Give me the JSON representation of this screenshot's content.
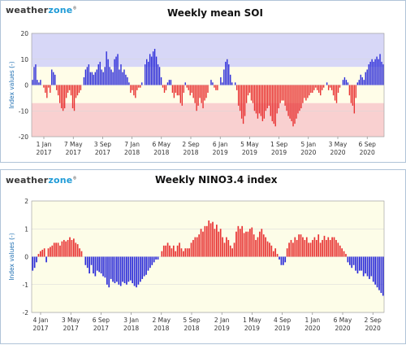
{
  "logo": {
    "part1": "weather",
    "part2": "zone",
    "mark": "®"
  },
  "colors": {
    "positive_soi": "#2b2bd9",
    "negative_soi": "#e83232",
    "positive_nino": "#e83232",
    "negative_nino": "#2b2bd9",
    "soi_top_band": "#d7d7f7",
    "soi_mid_band": "#fffde8",
    "soi_bottom_band": "#f9d0d0",
    "nino_bg": "#fdfde8",
    "axis_label": "#1f6fb2"
  },
  "chart_data": [
    {
      "type": "bar",
      "title": "Weekly mean SOI",
      "ylabel": "Index values (-)",
      "ylim": [
        -20,
        20
      ],
      "yticks": [
        20,
        10,
        0,
        -10,
        -20
      ],
      "bands": [
        {
          "from": 7,
          "to": 20,
          "color": "soi_top_band"
        },
        {
          "from": -7,
          "to": 7,
          "color": "soi_mid_band"
        },
        {
          "from": -20,
          "to": -7,
          "color": "soi_bottom_band"
        }
      ],
      "xticks": [
        {
          "label": "1 Jan",
          "year": "2017"
        },
        {
          "label": "7 May",
          "year": "2017"
        },
        {
          "label": "3 Sep",
          "year": "2017"
        },
        {
          "label": "7 Jan",
          "year": "2018"
        },
        {
          "label": "6 May",
          "year": "2018"
        },
        {
          "label": "2 Sep",
          "year": "2018"
        },
        {
          "label": "6 Jan",
          "year": "2019"
        },
        {
          "label": "5 May",
          "year": "2019"
        },
        {
          "label": "1 Sep",
          "year": "2019"
        },
        {
          "label": "5 Jan",
          "year": "2020"
        },
        {
          "label": "3 May",
          "year": "2020"
        },
        {
          "label": "6 Sep",
          "year": "2020"
        }
      ],
      "week_count": 196,
      "values": [
        2,
        7,
        8,
        2,
        1,
        2,
        0,
        -1,
        -3,
        -5,
        -1,
        -3,
        6,
        5,
        4,
        -2,
        -4,
        -7,
        -9,
        -10,
        -9,
        -5,
        -3,
        -2,
        -4,
        -9,
        -10,
        -5,
        -4,
        -3,
        -2,
        0,
        3,
        6,
        7,
        8,
        5,
        5,
        4,
        5,
        6,
        8,
        9,
        6,
        5,
        7,
        13,
        10,
        7,
        6,
        5,
        10,
        11,
        12,
        6,
        8,
        5,
        6,
        4,
        3,
        1,
        -3,
        -2,
        -4,
        -5,
        -2,
        -1,
        -1,
        1,
        0,
        8,
        10,
        9,
        12,
        11,
        13,
        14,
        11,
        8,
        7,
        3,
        -1,
        -3,
        -2,
        1,
        2,
        2,
        -3,
        -5,
        -3,
        -4,
        -4,
        -7,
        -8,
        -3,
        1,
        -1,
        -2,
        -4,
        -3,
        -5,
        -7,
        -10,
        -8,
        -5,
        -7,
        -9,
        -6,
        -5,
        -3,
        0,
        2,
        1,
        -1,
        -2,
        -2,
        0,
        3,
        1,
        6,
        9,
        10,
        8,
        4,
        1,
        0,
        1,
        -2,
        -8,
        -10,
        -13,
        -15,
        -12,
        -7,
        -4,
        -3,
        -6,
        -7,
        -10,
        -11,
        -13,
        -11,
        -12,
        -14,
        -13,
        -10,
        -9,
        -8,
        -12,
        -14,
        -15,
        -16,
        -11,
        -9,
        -7,
        -6,
        -6,
        -8,
        -10,
        -12,
        -13,
        -14,
        -16,
        -15,
        -13,
        -11,
        -10,
        -9,
        -7,
        -5,
        -6,
        -5,
        -4,
        -3,
        -3,
        -2,
        -1,
        -2,
        -3,
        -4,
        -2,
        -1,
        0,
        1,
        -2,
        -1,
        -2,
        -4,
        -6,
        -7,
        -3,
        -1,
        0,
        2,
        3,
        2,
        1,
        -4,
        -7,
        -8
      ],
      "tail_values": [
        -11,
        -5,
        1,
        2,
        4,
        3,
        2,
        5,
        6,
        8,
        9,
        10,
        9,
        10,
        11,
        10,
        12,
        9,
        8
      ]
    },
    {
      "type": "bar",
      "title": "Weekly NINO3.4 index",
      "ylabel": "Index values (-)",
      "ylim": [
        -2,
        2
      ],
      "yticks": [
        2,
        1,
        0,
        -1,
        -2
      ],
      "xticks": [
        {
          "label": "4 Jan",
          "year": "2017"
        },
        {
          "label": "3 May",
          "year": "2017"
        },
        {
          "label": "6 Sep",
          "year": "2017"
        },
        {
          "label": "3 Jan",
          "year": "2018"
        },
        {
          "label": "2 May",
          "year": "2018"
        },
        {
          "label": "5 Sep",
          "year": "2018"
        },
        {
          "label": "2 Jan",
          "year": "2019"
        },
        {
          "label": "1 May",
          "year": "2019"
        },
        {
          "label": "4 Sep",
          "year": "2019"
        },
        {
          "label": "1 Jan",
          "year": "2020"
        },
        {
          "label": "6 May",
          "year": "2020"
        },
        {
          "label": "2 Sep",
          "year": "2020"
        }
      ],
      "values": [
        -0.5,
        -0.4,
        -0.2,
        0.1,
        0.2,
        0.25,
        0.3,
        -0.2,
        0.3,
        0.35,
        0.4,
        0.5,
        0.5,
        0.5,
        0.4,
        0.55,
        0.6,
        0.55,
        0.6,
        0.7,
        0.6,
        0.65,
        0.5,
        0.45,
        0.3,
        0.2,
        0.0,
        -0.3,
        -0.4,
        -0.6,
        -0.3,
        -0.6,
        -0.7,
        -0.5,
        -0.55,
        -0.6,
        -0.7,
        -0.75,
        -1.0,
        -1.1,
        -0.8,
        -0.9,
        -0.95,
        -0.9,
        -1.0,
        -1.05,
        -0.9,
        -0.95,
        -1.0,
        -0.9,
        -0.85,
        -0.95,
        -1.05,
        -1.1,
        -1.0,
        -0.9,
        -0.8,
        -0.7,
        -0.65,
        -0.5,
        -0.4,
        -0.3,
        -0.2,
        -0.1,
        -0.1,
        0.0,
        0.2,
        0.4,
        0.4,
        0.5,
        0.4,
        0.3,
        0.4,
        0.2,
        0.4,
        0.5,
        0.3,
        0.2,
        0.3,
        0.3,
        0.3,
        0.5,
        0.6,
        0.7,
        0.7,
        0.8,
        1.0,
        0.9,
        1.1,
        1.1,
        1.3,
        1.2,
        1.25,
        1.0,
        1.15,
        0.9,
        1.0,
        0.7,
        0.5,
        0.7,
        0.6,
        0.4,
        0.3,
        0.5,
        0.9,
        1.1,
        1.0,
        1.1,
        0.85,
        0.9,
        0.9,
        1.0,
        1.05,
        0.8,
        0.6,
        0.7,
        0.9,
        1.0,
        0.8,
        0.7,
        0.55,
        0.5,
        0.4,
        0.2,
        0.3,
        0.1,
        -0.1,
        -0.3,
        -0.3,
        -0.2,
        0.3,
        0.5,
        0.6,
        0.5,
        0.7,
        0.6,
        0.8,
        0.8,
        0.7,
        0.6,
        0.7,
        0.5,
        0.5,
        0.6,
        0.7,
        0.6,
        0.8,
        0.5,
        0.6,
        0.75,
        0.6,
        0.7,
        0.6,
        0.7,
        0.7,
        0.6,
        0.5,
        0.4,
        0.3,
        0.2,
        0.1,
        -0.2,
        -0.3,
        -0.4,
        -0.3,
        -0.5,
        -0.6,
        -0.5,
        -0.5,
        -0.7,
        -0.6,
        -0.7,
        -0.8,
        -0.7,
        -0.9,
        -1.0,
        -1.1,
        -1.2,
        -1.3,
        -1.4
      ]
    }
  ]
}
